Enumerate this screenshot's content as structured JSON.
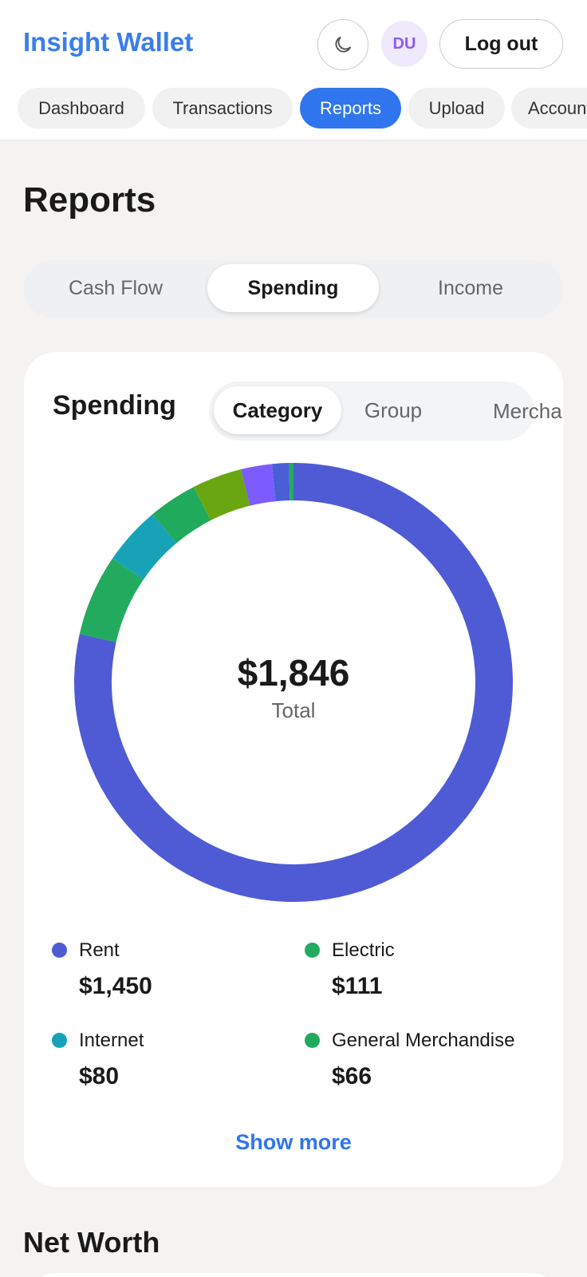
{
  "header": {
    "brand": "Insight Wallet",
    "avatar": "DU",
    "logout": "Log out"
  },
  "nav": [
    "Dashboard",
    "Transactions",
    "Reports",
    "Upload",
    "Accounts"
  ],
  "page_title": "Reports",
  "report_tabs": [
    "Cash Flow",
    "Spending",
    "Income"
  ],
  "card": {
    "title": "Spending",
    "tabs": [
      "Category",
      "Group",
      "Merchant"
    ],
    "show_more": "Show more"
  },
  "chart_data": {
    "type": "pie",
    "total_label": "$1,846",
    "center_label": "Total",
    "categories": [
      "Rent",
      "Electric",
      "Internet",
      "General Merchandise",
      null,
      null,
      null,
      null
    ],
    "values": [
      1450,
      111,
      80,
      66,
      68,
      42,
      23,
      6
    ],
    "value_labels": [
      "$1,450",
      "$111",
      "$80",
      "$66",
      null,
      null,
      null,
      null
    ],
    "colors": [
      "#4f5bd5",
      "#22ab5f",
      "#17a2b8",
      "#1faa5c",
      "#6aa512",
      "#7c5cff",
      "#4a5ed6",
      "#22ab5f"
    ]
  },
  "section_title": "Net Worth"
}
